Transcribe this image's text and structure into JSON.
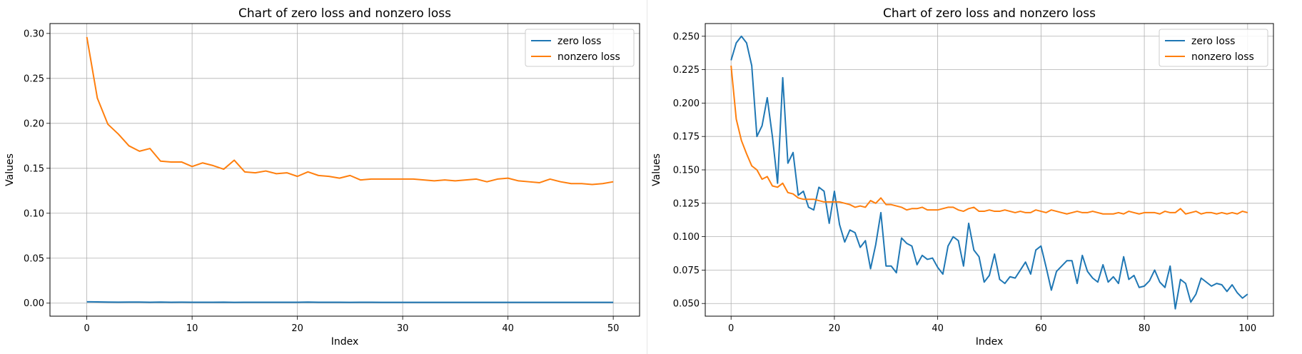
{
  "chart_data": [
    {
      "type": "line",
      "title": "Chart of zero loss and nonzero loss",
      "xlabel": "Index",
      "ylabel": "Values",
      "xlim": [
        -3.5,
        52.5
      ],
      "ylim": [
        -0.0145,
        0.311
      ],
      "xticks": [
        0,
        10,
        20,
        30,
        40,
        50
      ],
      "yticks": [
        0.0,
        0.05,
        0.1,
        0.15,
        0.2,
        0.25,
        0.3
      ],
      "xtick_labels": [
        "0",
        "10",
        "20",
        "30",
        "40",
        "50"
      ],
      "ytick_labels": [
        "0.00",
        "0.05",
        "0.10",
        "0.15",
        "0.20",
        "0.25",
        "0.30"
      ],
      "grid": true,
      "legend": "top-right",
      "series": [
        {
          "name": "zero loss",
          "color": "#1f77b4",
          "x": [
            0,
            1,
            2,
            3,
            4,
            5,
            6,
            7,
            8,
            9,
            10,
            11,
            12,
            13,
            14,
            15,
            16,
            17,
            18,
            19,
            20,
            21,
            22,
            23,
            24,
            25,
            26,
            27,
            28,
            29,
            30,
            31,
            32,
            33,
            34,
            35,
            36,
            37,
            38,
            39,
            40,
            41,
            42,
            43,
            44,
            45,
            46,
            47,
            48,
            49,
            50
          ],
          "values": [
            0.0015,
            0.0014,
            0.0012,
            0.0011,
            0.0012,
            0.0012,
            0.001,
            0.0012,
            0.001,
            0.0011,
            0.001,
            0.001,
            0.001,
            0.0011,
            0.0009,
            0.001,
            0.001,
            0.001,
            0.001,
            0.001,
            0.001,
            0.0012,
            0.001,
            0.001,
            0.001,
            0.0009,
            0.001,
            0.001,
            0.0009,
            0.0009,
            0.0009,
            0.0009,
            0.0009,
            0.0009,
            0.0009,
            0.0009,
            0.0009,
            0.0009,
            0.0009,
            0.0009,
            0.0009,
            0.0009,
            0.0009,
            0.0009,
            0.0009,
            0.0009,
            0.0009,
            0.0009,
            0.0009,
            0.0009,
            0.0009
          ]
        },
        {
          "name": "nonzero loss",
          "color": "#ff7f0e",
          "x": [
            0,
            1,
            2,
            3,
            4,
            5,
            6,
            7,
            8,
            9,
            10,
            11,
            12,
            13,
            14,
            15,
            16,
            17,
            18,
            19,
            20,
            21,
            22,
            23,
            24,
            25,
            26,
            27,
            28,
            29,
            30,
            31,
            32,
            33,
            34,
            35,
            36,
            37,
            38,
            39,
            40,
            41,
            42,
            43,
            44,
            45,
            46,
            47,
            48,
            49,
            50
          ],
          "values": [
            0.296,
            0.228,
            0.199,
            0.188,
            0.175,
            0.169,
            0.172,
            0.158,
            0.157,
            0.157,
            0.152,
            0.156,
            0.153,
            0.149,
            0.159,
            0.146,
            0.145,
            0.147,
            0.144,
            0.145,
            0.141,
            0.146,
            0.142,
            0.141,
            0.139,
            0.142,
            0.137,
            0.138,
            0.138,
            0.138,
            0.138,
            0.138,
            0.137,
            0.136,
            0.137,
            0.136,
            0.137,
            0.138,
            0.135,
            0.138,
            0.139,
            0.136,
            0.135,
            0.134,
            0.138,
            0.135,
            0.133,
            0.133,
            0.132,
            0.133,
            0.135
          ]
        }
      ]
    },
    {
      "type": "line",
      "title": "Chart of zero loss and nonzero loss",
      "xlabel": "Index",
      "ylabel": "Values",
      "xlim": [
        -5,
        105
      ],
      "ylim": [
        0.0405,
        0.2595
      ],
      "xticks": [
        0,
        20,
        40,
        60,
        80,
        100
      ],
      "yticks": [
        0.05,
        0.075,
        0.1,
        0.125,
        0.15,
        0.175,
        0.2,
        0.225,
        0.25
      ],
      "xtick_labels": [
        "0",
        "20",
        "40",
        "60",
        "80",
        "100"
      ],
      "ytick_labels": [
        "0.050",
        "0.075",
        "0.100",
        "0.125",
        "0.150",
        "0.175",
        "0.200",
        "0.225",
        "0.250"
      ],
      "grid": true,
      "legend": "top-right",
      "series": [
        {
          "name": "zero loss",
          "color": "#1f77b4",
          "x": [
            0,
            1,
            2,
            3,
            4,
            5,
            6,
            7,
            8,
            9,
            10,
            11,
            12,
            13,
            14,
            15,
            16,
            17,
            18,
            19,
            20,
            21,
            22,
            23,
            24,
            25,
            26,
            27,
            28,
            29,
            30,
            31,
            32,
            33,
            34,
            35,
            36,
            37,
            38,
            39,
            40,
            41,
            42,
            43,
            44,
            45,
            46,
            47,
            48,
            49,
            50,
            51,
            52,
            53,
            54,
            55,
            56,
            57,
            58,
            59,
            60,
            61,
            62,
            63,
            64,
            65,
            66,
            67,
            68,
            69,
            70,
            71,
            72,
            73,
            74,
            75,
            76,
            77,
            78,
            79,
            80,
            81,
            82,
            83,
            84,
            85,
            86,
            87,
            88,
            89,
            90,
            91,
            92,
            93,
            94,
            95,
            96,
            97,
            98,
            99,
            100
          ],
          "values": [
            0.232,
            0.245,
            0.25,
            0.245,
            0.228,
            0.175,
            0.183,
            0.204,
            0.175,
            0.14,
            0.219,
            0.155,
            0.163,
            0.131,
            0.134,
            0.122,
            0.12,
            0.137,
            0.134,
            0.11,
            0.134,
            0.109,
            0.096,
            0.105,
            0.103,
            0.092,
            0.097,
            0.076,
            0.094,
            0.118,
            0.078,
            0.078,
            0.073,
            0.099,
            0.095,
            0.093,
            0.079,
            0.086,
            0.083,
            0.084,
            0.077,
            0.072,
            0.093,
            0.1,
            0.097,
            0.078,
            0.11,
            0.09,
            0.085,
            0.066,
            0.071,
            0.087,
            0.068,
            0.065,
            0.07,
            0.069,
            0.075,
            0.081,
            0.072,
            0.09,
            0.093,
            0.077,
            0.06,
            0.074,
            0.078,
            0.082,
            0.082,
            0.065,
            0.086,
            0.074,
            0.069,
            0.066,
            0.079,
            0.066,
            0.07,
            0.065,
            0.085,
            0.068,
            0.071,
            0.062,
            0.063,
            0.067,
            0.075,
            0.066,
            0.062,
            0.078,
            0.046,
            0.068,
            0.065,
            0.051,
            0.057,
            0.069,
            0.066,
            0.063,
            0.065,
            0.064,
            0.059,
            0.064,
            0.058,
            0.054,
            0.057
          ]
        },
        {
          "name": "nonzero loss",
          "color": "#ff7f0e",
          "x": [
            0,
            1,
            2,
            3,
            4,
            5,
            6,
            7,
            8,
            9,
            10,
            11,
            12,
            13,
            14,
            15,
            16,
            17,
            18,
            19,
            20,
            21,
            22,
            23,
            24,
            25,
            26,
            27,
            28,
            29,
            30,
            31,
            32,
            33,
            34,
            35,
            36,
            37,
            38,
            39,
            40,
            41,
            42,
            43,
            44,
            45,
            46,
            47,
            48,
            49,
            50,
            51,
            52,
            53,
            54,
            55,
            56,
            57,
            58,
            59,
            60,
            61,
            62,
            63,
            64,
            65,
            66,
            67,
            68,
            69,
            70,
            71,
            72,
            73,
            74,
            75,
            76,
            77,
            78,
            79,
            80,
            81,
            82,
            83,
            84,
            85,
            86,
            87,
            88,
            89,
            90,
            91,
            92,
            93,
            94,
            95,
            96,
            97,
            98,
            99,
            100
          ],
          "values": [
            0.228,
            0.188,
            0.172,
            0.162,
            0.153,
            0.15,
            0.143,
            0.145,
            0.138,
            0.137,
            0.14,
            0.133,
            0.132,
            0.129,
            0.128,
            0.128,
            0.128,
            0.127,
            0.126,
            0.126,
            0.126,
            0.126,
            0.125,
            0.124,
            0.122,
            0.123,
            0.122,
            0.127,
            0.125,
            0.129,
            0.124,
            0.124,
            0.123,
            0.122,
            0.12,
            0.121,
            0.121,
            0.122,
            0.12,
            0.12,
            0.12,
            0.121,
            0.122,
            0.122,
            0.12,
            0.119,
            0.121,
            0.122,
            0.119,
            0.119,
            0.12,
            0.119,
            0.119,
            0.12,
            0.119,
            0.118,
            0.119,
            0.118,
            0.118,
            0.12,
            0.119,
            0.118,
            0.12,
            0.119,
            0.118,
            0.117,
            0.118,
            0.119,
            0.118,
            0.118,
            0.119,
            0.118,
            0.117,
            0.117,
            0.117,
            0.118,
            0.117,
            0.119,
            0.118,
            0.117,
            0.118,
            0.118,
            0.118,
            0.117,
            0.119,
            0.118,
            0.118,
            0.121,
            0.117,
            0.118,
            0.119,
            0.117,
            0.118,
            0.118,
            0.117,
            0.118,
            0.117,
            0.118,
            0.117,
            0.119,
            0.118
          ]
        }
      ]
    }
  ]
}
